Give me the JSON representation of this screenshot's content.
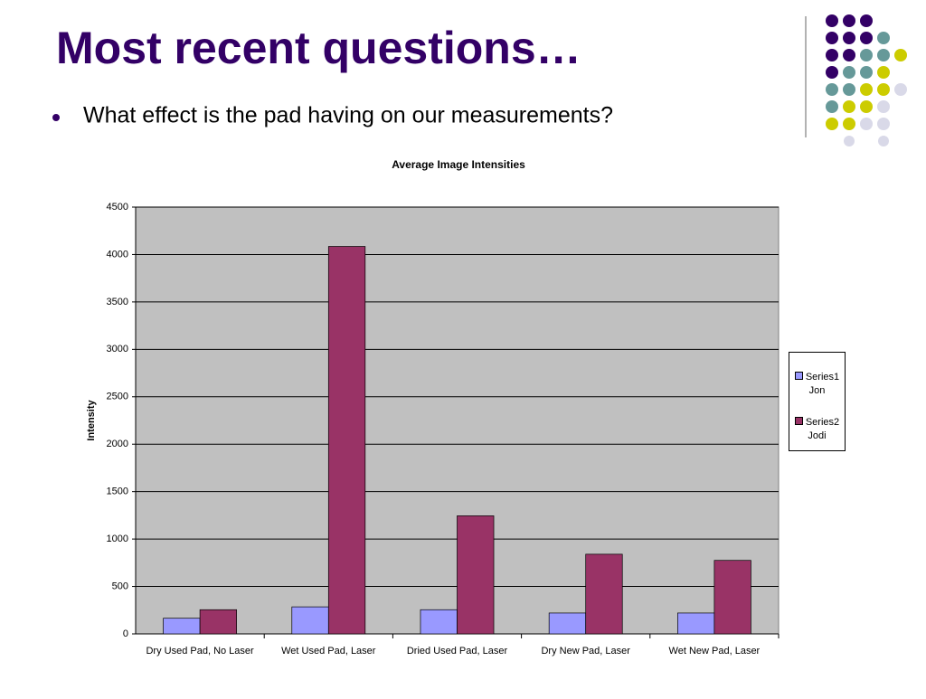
{
  "slide": {
    "title": "Most recent questions…",
    "bullet": "What effect is the pad having on our measurements?"
  },
  "chart_data": {
    "type": "bar",
    "title": "Average Image Intensities",
    "y_label": "Intensity",
    "categories": [
      "Dry Used Pad, No Laser",
      "Wet Used Pad, Laser",
      "Dried Used Pad, Laser",
      "Dry New Pad, Laser",
      "Wet New Pad, Laser"
    ],
    "series": [
      {
        "name": "Series1 Jon",
        "color": "#9999ff",
        "values": [
          165,
          285,
          255,
          220,
          220
        ]
      },
      {
        "name": "Series2 Jodi",
        "color": "#993366",
        "values": [
          255,
          4085,
          1245,
          840,
          775
        ]
      }
    ],
    "ylim": [
      0,
      4500
    ],
    "yticks": [
      0,
      500,
      1000,
      1500,
      2000,
      2500,
      3000,
      3500,
      4000,
      4500
    ],
    "grid": true,
    "legend": "right",
    "plot_background": "#c0c0c0"
  }
}
